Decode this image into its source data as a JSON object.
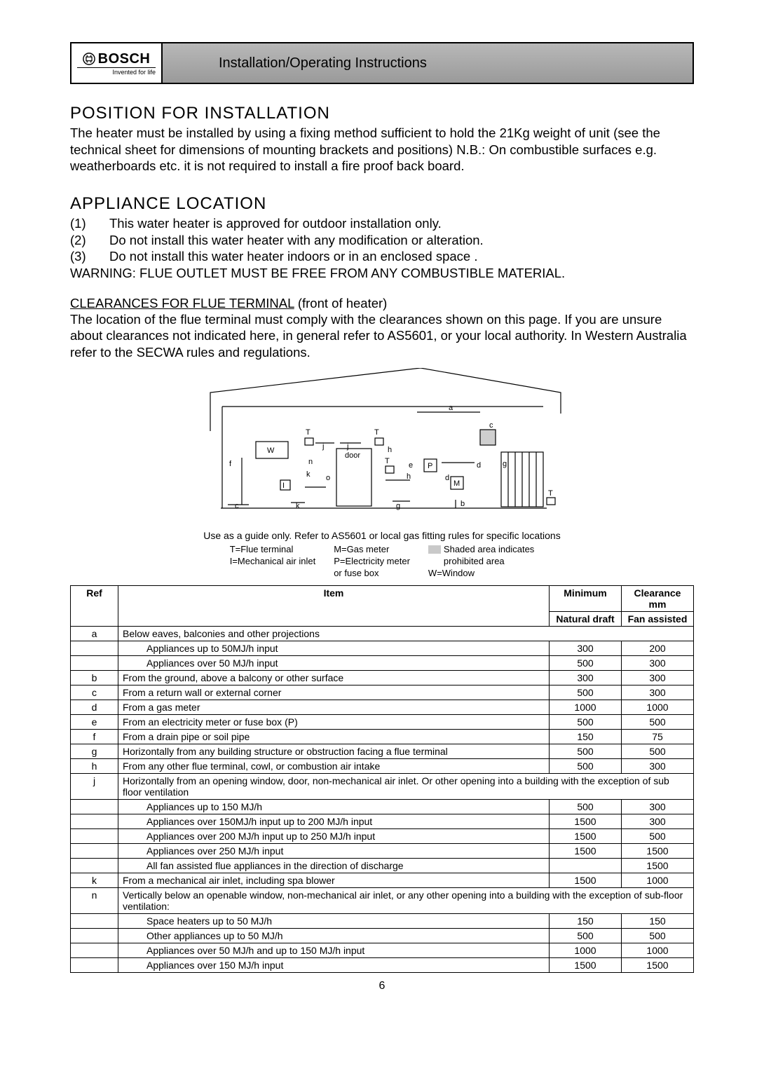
{
  "header": {
    "brand": "BOSCH",
    "tagline": "Invented for life",
    "title": "Installation/Operating Instructions"
  },
  "section1": {
    "title": "POSITION FOR INSTALLATION",
    "text": "The heater must be installed by using a fixing method sufficient to hold the 21Kg weight of unit (see the technical sheet for dimensions of mounting brackets and positions) N.B.: On combustible surfaces e.g. weatherboards etc. it is not required to install a fire proof back board."
  },
  "section2": {
    "title": "APPLIANCE LOCATION",
    "items": [
      {
        "n": "(1)",
        "t": "This water heater is approved for outdoor installation only."
      },
      {
        "n": "(2)",
        "t": "Do not install this water heater with any modification or alteration."
      },
      {
        "n": "(3)",
        "t": "Do not install this water heater indoors or in an enclosed space ."
      }
    ],
    "warning": "WARNING:  FLUE OUTLET MUST BE FREE FROM ANY COMBUSTIBLE MATERIAL.",
    "subhead_underlined": "CLEARANCES FOR FLUE TERMINAL",
    "subhead_rest": " (front of heater)",
    "subtext": "The location of the flue terminal must comply with the clearances shown on this page. If you are unsure about clearances not indicated here, in general refer to AS5601, or your local authority. In Western Australia refer to the SECWA rules and regulations."
  },
  "diagram": {
    "caption": "Use as a guide only. Refer to AS5601 or local gas fitting rules for specific locations",
    "labels": {
      "W": "W",
      "T": "T",
      "I": "I",
      "M": "M",
      "P": "P",
      "a": "a",
      "b": "b",
      "c": "c",
      "d": "d",
      "e": "e",
      "f": "f",
      "g": "g",
      "h": "h",
      "j": "j",
      "k": "k",
      "n": "n",
      "o": "o",
      "door": "door"
    },
    "legend": {
      "c1a": "T=Flue terminal",
      "c1b": "I=Mechanical air inlet",
      "c2a": "M=Gas meter",
      "c2b": "P=Electricity meter",
      "c2c": "or fuse box",
      "c3a": "Shaded area indicates",
      "c3b": "prohibited area",
      "c3c": "W=Window"
    }
  },
  "table": {
    "head": {
      "ref": "Ref",
      "item": "Item",
      "min": "Minimum",
      "clr": "Clearance mm",
      "nat": "Natural draft",
      "fan": "Fan assisted"
    },
    "rows": [
      {
        "ref": "a",
        "item": "Below eaves, balconies and other projections",
        "nat": "",
        "fan": "",
        "span": true
      },
      {
        "ref": "",
        "item": "Appliances up to 50MJ/h input",
        "nat": "300",
        "fan": "200",
        "indent": true
      },
      {
        "ref": "",
        "item": "Appliances over 50 MJ/h input",
        "nat": "500",
        "fan": "300",
        "indent": true
      },
      {
        "ref": "b",
        "item": "From the ground, above a balcony or other surface",
        "nat": "300",
        "fan": "300"
      },
      {
        "ref": "c",
        "item": "From a return wall or external corner",
        "nat": "500",
        "fan": "300"
      },
      {
        "ref": "d",
        "item": "From a gas meter",
        "nat": "1000",
        "fan": "1000"
      },
      {
        "ref": "e",
        "item": "From an electricity meter or fuse box (P)",
        "nat": "500",
        "fan": "500"
      },
      {
        "ref": "f",
        "item": "From a drain pipe or soil pipe",
        "nat": "150",
        "fan": "75"
      },
      {
        "ref": "g",
        "item": "Horizontally from any building structure or obstruction facing a flue terminal",
        "nat": "500",
        "fan": "500"
      },
      {
        "ref": "h",
        "item": "From any other flue terminal, cowl, or combustion air intake",
        "nat": "500",
        "fan": "300"
      },
      {
        "ref": "j",
        "item": "Horizontally from an opening window, door, non-mechanical air inlet. Or other opening into a building with the exception of sub floor ventilation",
        "nat": "",
        "fan": "",
        "span": true
      },
      {
        "ref": "",
        "item": "Appliances up to 150 MJ/h",
        "nat": "500",
        "fan": "300",
        "indent": true
      },
      {
        "ref": "",
        "item": "Appliances over 150MJ/h input up to 200 MJ/h input",
        "nat": "1500",
        "fan": "300",
        "indent": true
      },
      {
        "ref": "",
        "item": "Appliances over 200 MJ/h input up to 250 MJ/h input",
        "nat": "1500",
        "fan": "500",
        "indent": true
      },
      {
        "ref": "",
        "item": "Appliances over 250 MJ/h input",
        "nat": "1500",
        "fan": "1500",
        "indent": true
      },
      {
        "ref": "",
        "item": "All fan assisted flue appliances in the direction of discharge",
        "nat": "",
        "fan": "1500",
        "indent": true
      },
      {
        "ref": "k",
        "item": "From a mechanical air inlet, including spa blower",
        "nat": "1500",
        "fan": "1000"
      },
      {
        "ref": "n",
        "item": "Vertically below an   openable window, non-mechanical air inlet, or any other opening into a building with the exception of sub-floor ventilation:",
        "nat": "",
        "fan": "",
        "span": true
      },
      {
        "ref": "",
        "item": "Space heaters up to 50 MJ/h",
        "nat": "150",
        "fan": "150",
        "indent": true
      },
      {
        "ref": "",
        "item": "Other appliances up to 50 MJ/h",
        "nat": "500",
        "fan": "500",
        "indent": true
      },
      {
        "ref": "",
        "item": "Appliances over 50 MJ/h and up to 150 MJ/h input",
        "nat": "1000",
        "fan": "1000",
        "indent": true
      },
      {
        "ref": "",
        "item": "Appliances over 150 MJ/h input",
        "nat": "1500",
        "fan": "1500",
        "indent": true
      }
    ]
  },
  "page_number": "6"
}
